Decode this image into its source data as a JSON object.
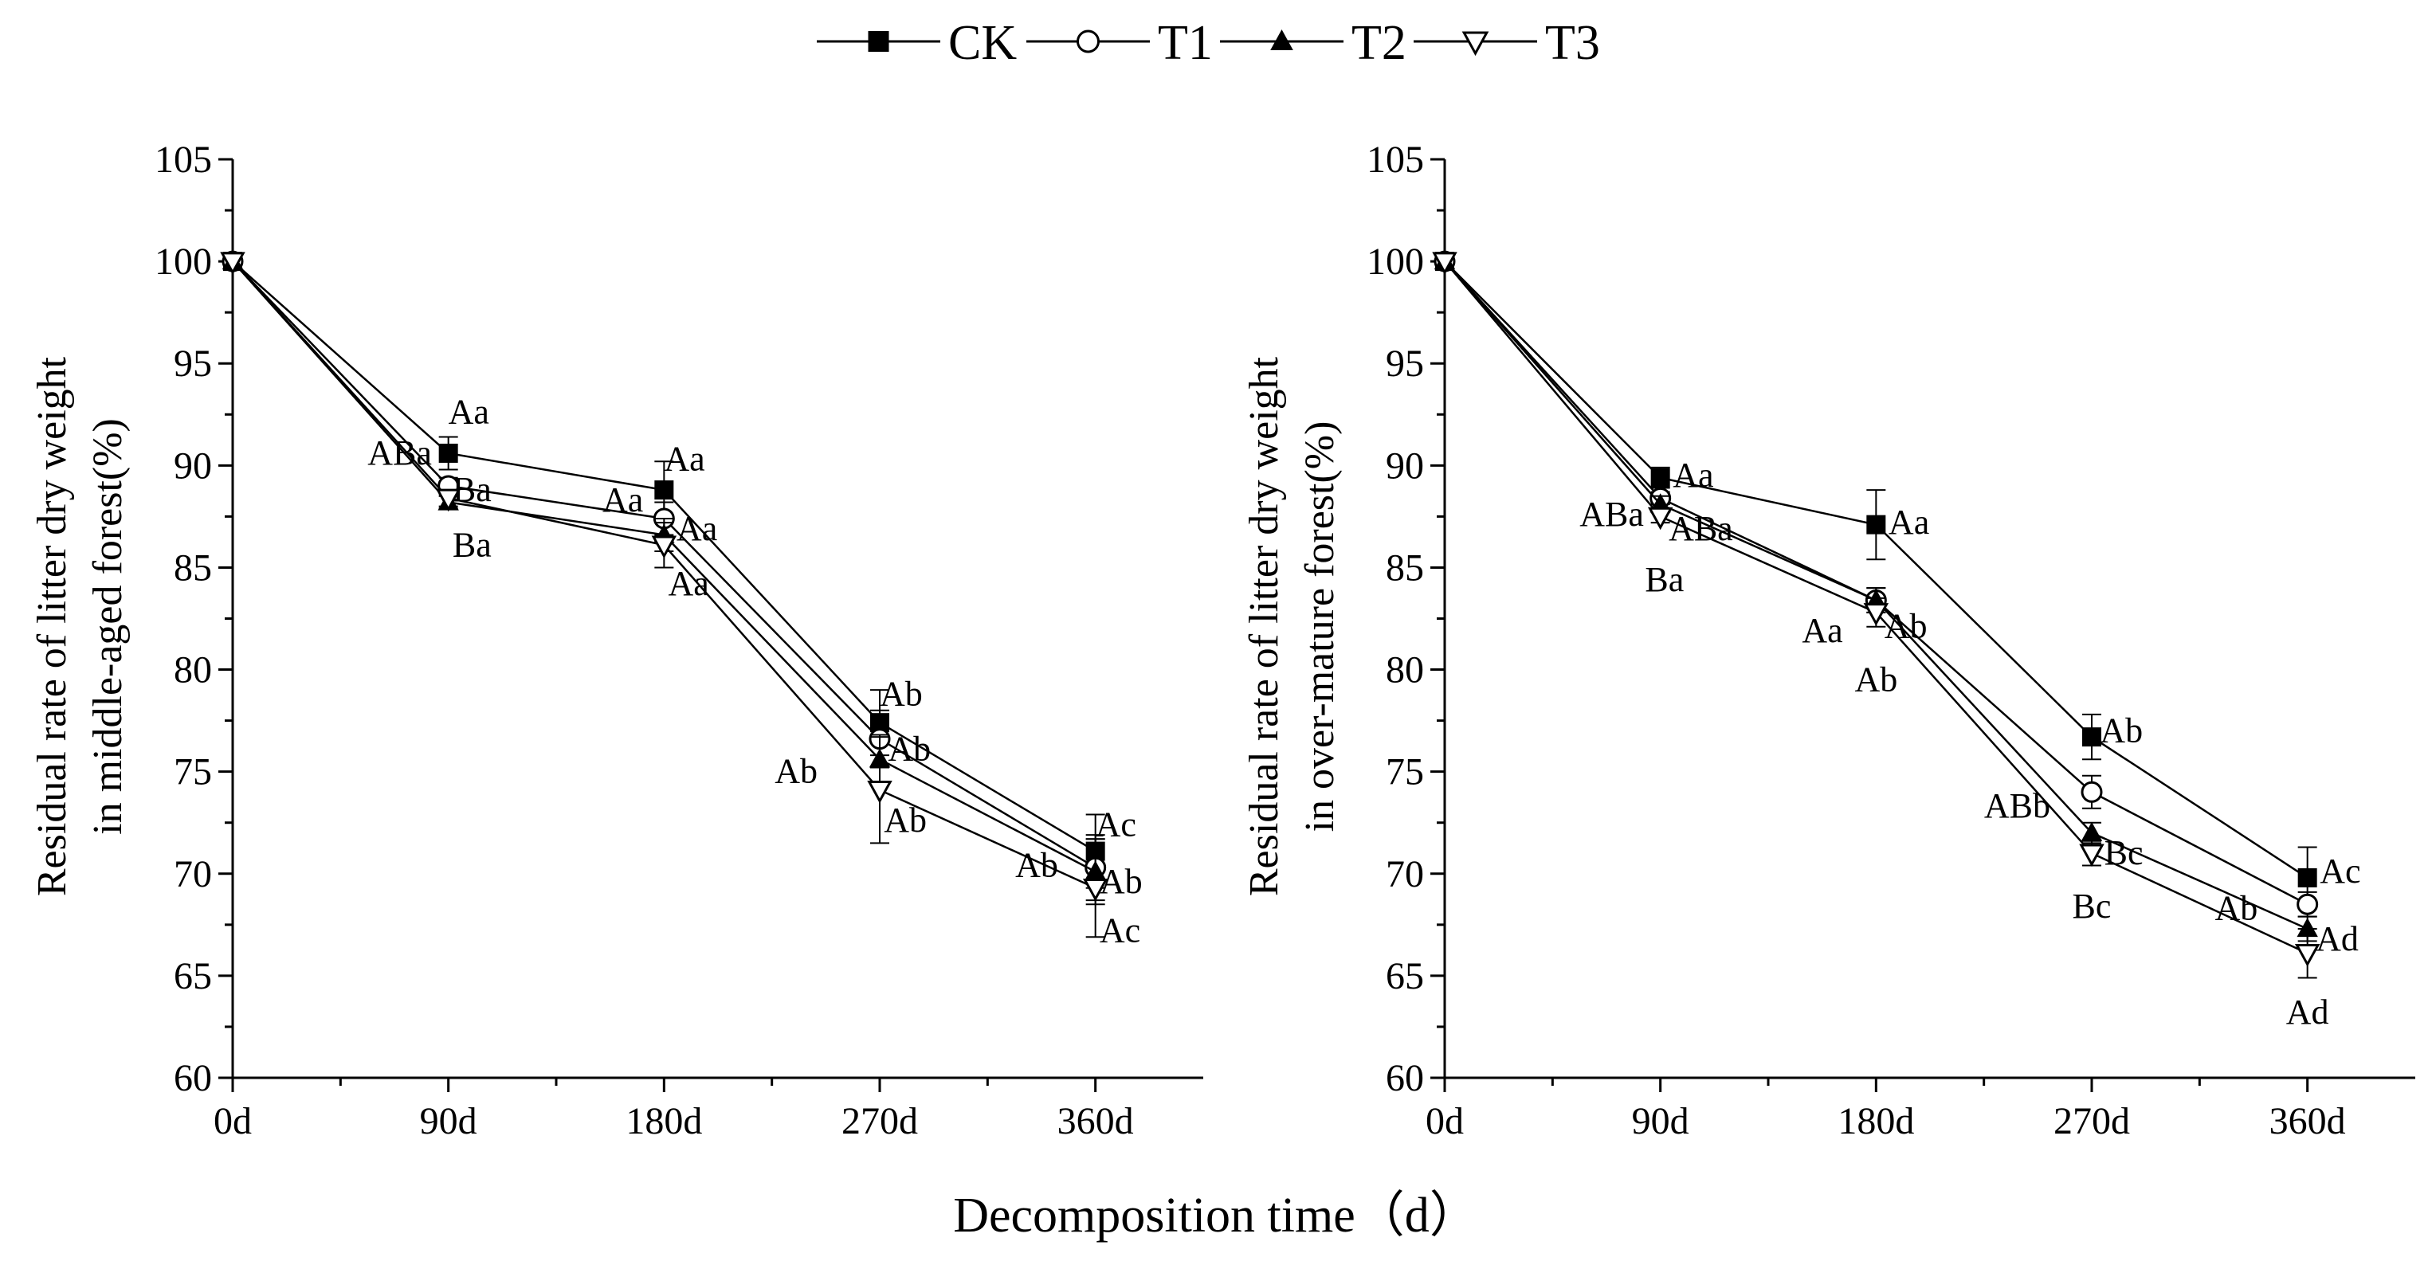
{
  "legend": [
    {
      "name": "CK",
      "marker": "filled-square"
    },
    {
      "name": "T1",
      "marker": "open-circle"
    },
    {
      "name": "T2",
      "marker": "filled-triangle-up"
    },
    {
      "name": "T3",
      "marker": "open-triangle-down"
    }
  ],
  "xlabel": "Decomposition time（d）",
  "colors": {
    "line": "#000000",
    "background": "#ffffff"
  },
  "chart_data": [
    {
      "type": "line",
      "id": "middle-aged",
      "ylabel_lines": [
        "Residual rate of litter dry weight",
        "in middle-aged forest(%)"
      ],
      "x": [
        0,
        90,
        180,
        270,
        360
      ],
      "x_tick_labels": [
        "0d",
        "90d",
        "180d",
        "270d",
        "360d"
      ],
      "xlim": [
        0,
        405
      ],
      "ylim": [
        60,
        105
      ],
      "y_ticks": [
        60,
        65,
        70,
        75,
        80,
        85,
        90,
        95,
        100,
        105
      ],
      "series": [
        {
          "name": "CK",
          "values": [
            100,
            90.6,
            88.8,
            77.4,
            71.1
          ],
          "errors": [
            0,
            0.8,
            1.4,
            1.6,
            1.8
          ]
        },
        {
          "name": "T1",
          "values": [
            100,
            89.0,
            87.4,
            76.6,
            70.3
          ],
          "errors": [
            0,
            0.4,
            0.8,
            1.4,
            1.6
          ]
        },
        {
          "name": "T2",
          "values": [
            100,
            88.2,
            86.6,
            75.6,
            70.1
          ],
          "errors": [
            0,
            0.3,
            0.8,
            1.2,
            1.6
          ]
        },
        {
          "name": "T3",
          "values": [
            100,
            88.4,
            86.1,
            74.1,
            69.3
          ],
          "errors": [
            0,
            0.4,
            1.1,
            2.6,
            2.4
          ]
        }
      ],
      "annotations": [
        {
          "text": "Aa",
          "x": 90,
          "y": 92.6,
          "anchor": "start",
          "dx": 0.0
        },
        {
          "text": "ABa",
          "x": 90,
          "y": 90.6,
          "anchor": "end",
          "dx": -8
        },
        {
          "text": "Ba",
          "x": 90,
          "y": 88.8,
          "anchor": "start",
          "dx": 2
        },
        {
          "text": "Ba",
          "x": 90,
          "y": 86.1,
          "anchor": "start",
          "dx": 2
        },
        {
          "text": "Aa",
          "x": 180,
          "y": 90.3,
          "anchor": "start",
          "dx": 0
        },
        {
          "text": "Aa",
          "x": 180,
          "y": 88.3,
          "anchor": "end",
          "dx": -10
        },
        {
          "text": "Aa",
          "x": 180,
          "y": 86.9,
          "anchor": "start",
          "dx": 6
        },
        {
          "text": "Aa",
          "x": 180,
          "y": 84.2,
          "anchor": "start",
          "dx": 2
        },
        {
          "text": "Ab",
          "x": 270,
          "y": 78.8,
          "anchor": "start",
          "dx": 0
        },
        {
          "text": "Ab",
          "x": 270,
          "y": 76.1,
          "anchor": "start",
          "dx": 4
        },
        {
          "text": "Ab",
          "x": 270,
          "y": 72.6,
          "anchor": "start",
          "dx": 2
        },
        {
          "text": "Ab",
          "x": 270,
          "y": 75.0,
          "anchor": "end",
          "dx": -30
        },
        {
          "text": "Ac",
          "x": 360,
          "y": 72.4,
          "anchor": "start",
          "dx": 0
        },
        {
          "text": "Ab",
          "x": 360,
          "y": 69.6,
          "anchor": "start",
          "dx": 2
        },
        {
          "text": "Ab",
          "x": 360,
          "y": 70.4,
          "anchor": "end",
          "dx": -18
        },
        {
          "text": "Ac",
          "x": 360,
          "y": 67.2,
          "anchor": "start",
          "dx": 2
        }
      ]
    },
    {
      "type": "line",
      "id": "over-mature",
      "ylabel_lines": [
        "Residual rate of litter dry weight",
        "in over-mature forest(%)"
      ],
      "x": [
        0,
        90,
        180,
        270,
        360
      ],
      "x_tick_labels": [
        "0d",
        "90d",
        "180d",
        "270d",
        "360d"
      ],
      "xlim": [
        0,
        405
      ],
      "ylim": [
        60,
        105
      ],
      "y_ticks": [
        60,
        65,
        70,
        75,
        80,
        85,
        90,
        95,
        100,
        105
      ],
      "series": [
        {
          "name": "CK",
          "values": [
            100,
            89.4,
            87.1,
            76.7,
            69.8
          ],
          "errors": [
            0,
            0.5,
            1.7,
            1.1,
            1.5
          ]
        },
        {
          "name": "T1",
          "values": [
            100,
            88.4,
            83.4,
            74.0,
            68.5
          ],
          "errors": [
            0,
            0.3,
            0.6,
            0.8,
            0.6
          ]
        },
        {
          "name": "T2",
          "values": [
            100,
            88.1,
            83.4,
            72.0,
            67.3
          ],
          "errors": [
            0,
            0.4,
            0.6,
            0.5,
            0.6
          ]
        },
        {
          "name": "T3",
          "values": [
            100,
            87.5,
            82.8,
            71.0,
            66.1
          ],
          "errors": [
            0,
            0.3,
            0.7,
            0.6,
            1.2
          ]
        }
      ],
      "annotations": [
        {
          "text": "Aa",
          "x": 90,
          "y": 89.5,
          "anchor": "start",
          "dx": 6
        },
        {
          "text": "ABa",
          "x": 90,
          "y": 87.6,
          "anchor": "end",
          "dx": -8
        },
        {
          "text": "ABa",
          "x": 90,
          "y": 86.9,
          "anchor": "start",
          "dx": 4
        },
        {
          "text": "Ba",
          "x": 90,
          "y": 84.4,
          "anchor": "middle",
          "dx": 2
        },
        {
          "text": "Aa",
          "x": 180,
          "y": 87.2,
          "anchor": "start",
          "dx": 6
        },
        {
          "text": "Aa",
          "x": 180,
          "y": 81.9,
          "anchor": "end",
          "dx": -16
        },
        {
          "text": "Ab",
          "x": 180,
          "y": 82.1,
          "anchor": "start",
          "dx": 4
        },
        {
          "text": "Ab",
          "x": 180,
          "y": 79.5,
          "anchor": "middle",
          "dx": 0
        },
        {
          "text": "Ab",
          "x": 270,
          "y": 77.0,
          "anchor": "start",
          "dx": 4
        },
        {
          "text": "ABb",
          "x": 270,
          "y": 73.3,
          "anchor": "end",
          "dx": -20
        },
        {
          "text": "Bc",
          "x": 270,
          "y": 71.0,
          "anchor": "start",
          "dx": 6
        },
        {
          "text": "Bc",
          "x": 270,
          "y": 68.4,
          "anchor": "middle",
          "dx": 0
        },
        {
          "text": "Ac",
          "x": 360,
          "y": 70.1,
          "anchor": "start",
          "dx": 6
        },
        {
          "text": "Ab",
          "x": 360,
          "y": 68.3,
          "anchor": "end",
          "dx": -24
        },
        {
          "text": "Ad",
          "x": 360,
          "y": 66.8,
          "anchor": "start",
          "dx": 4
        },
        {
          "text": "Ad",
          "x": 360,
          "y": 63.2,
          "anchor": "middle",
          "dx": 0
        }
      ]
    }
  ]
}
